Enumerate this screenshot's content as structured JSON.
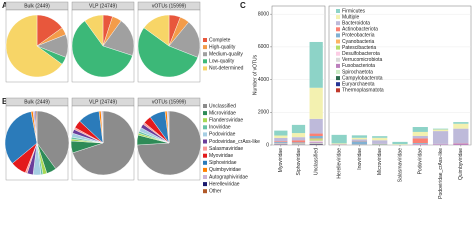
{
  "chart_data": [
    {
      "type": "pie",
      "panel_label": "A",
      "categories": [
        "Complete",
        "High-quality",
        "Medium-quality",
        "Low-quality",
        "Not-determined"
      ],
      "colors": [
        "#e8573c",
        "#f39c4a",
        "#a0a0a0",
        "#3cb878",
        "#f7d567"
      ],
      "pies": [
        {
          "title": "Bulk (2449)",
          "values": [
            15,
            4,
            12,
            4,
            65
          ]
        },
        {
          "title": "VLP (24749)",
          "values": [
            5,
            5,
            20,
            60,
            10
          ]
        },
        {
          "title": "vOTUs (15999)",
          "values": [
            6,
            5,
            20,
            54,
            15
          ]
        }
      ]
    },
    {
      "type": "pie",
      "panel_label": "B",
      "categories": [
        "Unclassified",
        "Microviridae",
        "Flandersviridae",
        "Inoviridae",
        "Podoviridae",
        "Podoviridae_crAss-like",
        "Salasmaviridae",
        "Myoviridae",
        "Siphoviridae",
        "Quimbyviridae",
        "Autographiviridae",
        "Herelleviridae",
        "Other"
      ],
      "colors": [
        "#8c8c8c",
        "#2e8b57",
        "#a6d854",
        "#66c2a5",
        "#a6cee3",
        "#6a3d9a",
        "#fb9a99",
        "#e31a1c",
        "#2b7bba",
        "#ff7f00",
        "#cab2d6",
        "#1a1a6e",
        "#b15928"
      ],
      "pies": [
        {
          "title": "Bulk (2449)",
          "values": [
            40,
            5,
            2,
            1,
            4,
            3,
            1,
            8,
            33,
            1,
            1,
            0.5,
            0.5
          ]
        },
        {
          "title": "VLP (24749)",
          "values": [
            70,
            6,
            1,
            1,
            2,
            2,
            1,
            4,
            11,
            1,
            0.5,
            0.3,
            0.2
          ]
        },
        {
          "title": "vOTUs (15999)",
          "values": [
            74,
            5,
            1,
            1,
            2,
            2,
            1,
            4,
            8,
            1,
            0.5,
            0.3,
            0.2
          ]
        }
      ]
    },
    {
      "type": "bar",
      "panel_label": "C",
      "stacked": true,
      "grid": true,
      "ylabel": "Number of vOTUs",
      "ylim": [
        0,
        8500
      ],
      "yticks": [
        0,
        2000,
        4000,
        6000,
        8000
      ],
      "series": [
        {
          "name": "Firmicutes",
          "color": "#8dd3c7"
        },
        {
          "name": "Multiple",
          "color": "#f3f1b0"
        },
        {
          "name": "Bacteroidota",
          "color": "#bebada"
        },
        {
          "name": "Actinobacteriota",
          "color": "#fb8072"
        },
        {
          "name": "Proteobacteria",
          "color": "#80b1d3"
        },
        {
          "name": "Cyanobacteria",
          "color": "#fdb462"
        },
        {
          "name": "Patescibacteria",
          "color": "#b3de69"
        },
        {
          "name": "Desulfobacterota",
          "color": "#fccde5"
        },
        {
          "name": "Verrucomicrobiota",
          "color": "#d9d9d9"
        },
        {
          "name": "Fusobacteriota",
          "color": "#bc80bd"
        },
        {
          "name": "Spirochaetota",
          "color": "#ccebc5"
        },
        {
          "name": "Campylobacterota",
          "color": "#2d6a4f"
        },
        {
          "name": "Euryarchaeota",
          "color": "#253494"
        },
        {
          "name": "Thermoplasmatota",
          "color": "#c0392b"
        }
      ],
      "facets": [
        {
          "categories": [
            "Myoviridae",
            "Siphoviridae",
            "Unclassified"
          ],
          "values": [
            [
              300,
              500,
              2800
            ],
            [
              150,
              250,
              1900
            ],
            [
              200,
              200,
              900
            ],
            [
              50,
              120,
              150
            ],
            [
              80,
              60,
              150
            ],
            [
              20,
              20,
              50
            ],
            [
              0,
              10,
              80
            ],
            [
              10,
              10,
              60
            ],
            [
              10,
              10,
              40
            ],
            [
              30,
              20,
              60
            ],
            [
              10,
              10,
              40
            ],
            [
              10,
              10,
              20
            ],
            [
              10,
              10,
              30
            ],
            [
              0,
              0,
              20
            ]
          ]
        },
        {
          "categories": [
            "Herelleviridae",
            "Inoviridae",
            "Microviridae",
            "Salasmaviridae",
            "Podoviridae",
            "Podoviridae_crAss-like",
            "Quimbyviridae"
          ],
          "values": [
            [
              520,
              150,
              100,
              140,
              300,
              50,
              100
            ],
            [
              50,
              100,
              150,
              40,
              250,
              100,
              300
            ],
            [
              20,
              100,
              220,
              10,
              150,
              780,
              880
            ],
            [
              10,
              20,
              10,
              0,
              280,
              10,
              10
            ],
            [
              10,
              180,
              30,
              0,
              50,
              10,
              10
            ],
            [
              0,
              10,
              10,
              0,
              10,
              0,
              0
            ],
            [
              0,
              0,
              10,
              0,
              0,
              0,
              0
            ],
            [
              0,
              0,
              0,
              0,
              10,
              10,
              10
            ],
            [
              0,
              10,
              10,
              0,
              0,
              0,
              0
            ],
            [
              10,
              10,
              0,
              0,
              50,
              40,
              90
            ],
            [
              0,
              0,
              0,
              0,
              0,
              0,
              0
            ],
            [
              0,
              10,
              0,
              0,
              0,
              0,
              0
            ],
            [
              0,
              0,
              0,
              0,
              0,
              0,
              0
            ],
            [
              0,
              0,
              0,
              0,
              0,
              0,
              0
            ]
          ]
        }
      ]
    }
  ]
}
